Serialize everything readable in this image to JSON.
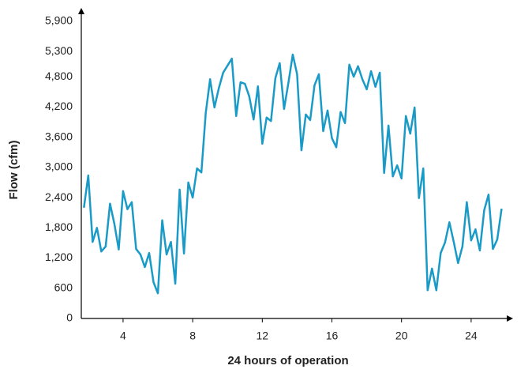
{
  "chart_data": {
    "type": "line",
    "x_label": "24 hours of operation",
    "y_label": "Flow (cfm)",
    "x": [
      1.75,
      2,
      2.25,
      2.5,
      2.75,
      3,
      3.25,
      3.5,
      3.75,
      4,
      4.25,
      4.5,
      4.75,
      5,
      5.25,
      5.5,
      5.75,
      6,
      6.25,
      6.5,
      6.75,
      7,
      7.25,
      7.5,
      7.75,
      8,
      8.25,
      8.5,
      8.75,
      9,
      9.25,
      9.5,
      9.75,
      10,
      10.25,
      10.5,
      10.75,
      11,
      11.25,
      11.5,
      11.75,
      12,
      12.25,
      12.5,
      12.75,
      13,
      13.25,
      13.5,
      13.75,
      14,
      14.25,
      14.5,
      14.75,
      15,
      15.25,
      15.5,
      15.75,
      16,
      16.25,
      16.5,
      16.75,
      17,
      17.25,
      17.5,
      17.75,
      18,
      18.25,
      18.5,
      18.75,
      19,
      19.25,
      19.5,
      19.75,
      20,
      20.25,
      20.5,
      20.75,
      21,
      21.25,
      21.5,
      21.75,
      22,
      22.25,
      22.5,
      22.75,
      23,
      23.25,
      23.5,
      23.75,
      24,
      24.25,
      24.5,
      24.75,
      25,
      25.25,
      25.5,
      25.75
    ],
    "series": [
      {
        "color": "#1a9bc7",
        "values": [
          2200,
          2840,
          1520,
          1800,
          1330,
          1430,
          2280,
          1880,
          1370,
          2530,
          2170,
          2310,
          1380,
          1270,
          1020,
          1300,
          720,
          500,
          1950,
          1270,
          1520,
          690,
          2560,
          1290,
          2700,
          2400,
          2980,
          2900,
          4080,
          4750,
          4190,
          4570,
          4880,
          5020,
          5160,
          4020,
          4690,
          4660,
          4410,
          3950,
          4610,
          3470,
          3990,
          3920,
          4770,
          5070,
          4160,
          4680,
          5240,
          4850,
          3340,
          4050,
          3940,
          4630,
          4850,
          3720,
          4130,
          3580,
          3400,
          4100,
          3880,
          5040,
          4800,
          5010,
          4750,
          4550,
          4910,
          4600,
          4880,
          2890,
          3830,
          2820,
          3040,
          2780,
          4020,
          3670,
          4190,
          2390,
          2980,
          560,
          990,
          560,
          1300,
          1510,
          1910,
          1520,
          1100,
          1430,
          2310,
          1550,
          1770,
          1350,
          2150,
          2460,
          1380,
          1570,
          2180
        ]
      }
    ],
    "xlim": [
      1.6,
      26
    ],
    "xticks": [
      4,
      8,
      12,
      16,
      20,
      24
    ],
    "ylim": [
      0,
      5900
    ],
    "yticks": [
      0,
      600,
      {
        "value": 1200,
        "label": "1,200"
      },
      {
        "value": 1800,
        "label": "1,800"
      },
      {
        "value": 2400,
        "label": "2,400"
      },
      {
        "value": 3000,
        "label": "3,000"
      },
      {
        "value": 3600,
        "label": "3,600"
      },
      {
        "value": 4200,
        "label": "4,200"
      },
      {
        "value": 4800,
        "label": "4,800"
      },
      {
        "value": 5300,
        "label": "5,300"
      },
      {
        "value": 5900,
        "label": "5,900"
      }
    ],
    "grid": false
  }
}
